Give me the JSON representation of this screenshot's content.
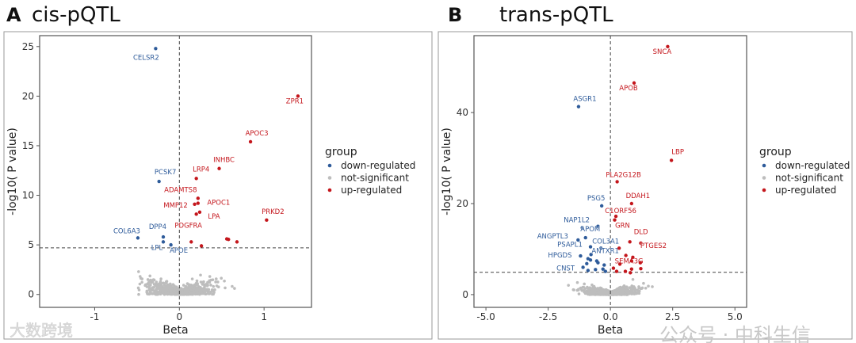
{
  "chart_data": [
    {
      "type": "scatter",
      "panel": "A",
      "title": "cis-pQTL",
      "xlabel": "Beta",
      "ylabel": "-log10( P value)",
      "xlim": [
        -1.65,
        1.56
      ],
      "ylim": [
        -1.3,
        26.1
      ],
      "xticks": [
        -1,
        0,
        1
      ],
      "xtick_labels": [
        "-1",
        "0",
        "1"
      ],
      "yticks": [
        0,
        5,
        10,
        15,
        20,
        25
      ],
      "threshold_y": 4.7,
      "threshold_x": 0,
      "legend": {
        "title": "group",
        "placement": "right",
        "entries": [
          "down-regulated",
          "not-significant",
          "up-regulated"
        ]
      },
      "points": [
        {
          "label": "CELSR2",
          "x": -0.28,
          "y": 24.8,
          "group": "down"
        },
        {
          "label": "ZPR1",
          "x": 1.4,
          "y": 20.0,
          "group": "up"
        },
        {
          "label": "APOC3",
          "x": 0.84,
          "y": 15.4,
          "group": "up"
        },
        {
          "label": "INHBC",
          "x": 0.47,
          "y": 12.7,
          "group": "up"
        },
        {
          "label": "LRP4",
          "x": 0.2,
          "y": 11.7,
          "group": "up"
        },
        {
          "label": "PCSK7",
          "x": -0.24,
          "y": 11.4,
          "group": "down"
        },
        {
          "label": "ADAMTS8",
          "x": 0.22,
          "y": 9.7,
          "group": "up"
        },
        {
          "label": "APOC1",
          "x": 0.22,
          "y": 9.2,
          "group": "up"
        },
        {
          "label": "MMP12",
          "x": 0.18,
          "y": 9.1,
          "group": "up"
        },
        {
          "label": "LPA",
          "x": 0.24,
          "y": 8.3,
          "group": "up"
        },
        {
          "label": "PDGFRA",
          "x": 0.2,
          "y": 8.1,
          "group": "up"
        },
        {
          "label": "PRKD2",
          "x": 1.03,
          "y": 7.5,
          "group": "up"
        },
        {
          "label": "COL6A3",
          "x": -0.49,
          "y": 5.7,
          "group": "down"
        },
        {
          "label": "DPP4",
          "x": -0.19,
          "y": 5.8,
          "group": "down"
        },
        {
          "label": "LPL",
          "x": -0.19,
          "y": 5.3,
          "group": "down"
        },
        {
          "label": "APOE",
          "x": -0.1,
          "y": 5.0,
          "group": "down"
        },
        {
          "label": "",
          "x": 0.14,
          "y": 5.3,
          "group": "up"
        },
        {
          "label": "",
          "x": 0.26,
          "y": 4.9,
          "group": "up"
        },
        {
          "label": "",
          "x": 0.56,
          "y": 5.6,
          "group": "up"
        },
        {
          "label": "",
          "x": 0.58,
          "y": 5.55,
          "group": "up"
        },
        {
          "label": "",
          "x": 0.68,
          "y": 5.3,
          "group": "up"
        }
      ]
    },
    {
      "type": "scatter",
      "panel": "B",
      "title": "trans-pQTL",
      "xlabel": "Beta",
      "ylabel": "-log10( P value)",
      "xlim": [
        -5.48,
        5.47
      ],
      "ylim": [
        -2.8,
        56.9
      ],
      "xticks": [
        -5,
        -2.5,
        0,
        2.5,
        5
      ],
      "xtick_labels": [
        "-5.0",
        "-2.5",
        "0.0",
        "2.5",
        "5.0"
      ],
      "yticks": [
        0,
        20,
        40
      ],
      "threshold_y": 4.9,
      "threshold_x": 0,
      "legend": {
        "title": "group",
        "placement": "right",
        "entries": [
          "down-regulated",
          "not-significant",
          "up-regulated"
        ]
      },
      "points": [
        {
          "label": "SNCA",
          "x": 2.3,
          "y": 54.5,
          "group": "up"
        },
        {
          "label": "APOB",
          "x": 0.95,
          "y": 46.5,
          "group": "up"
        },
        {
          "label": "ASGR1",
          "x": -1.28,
          "y": 41.3,
          "group": "down"
        },
        {
          "label": "LBP",
          "x": 2.45,
          "y": 29.5,
          "group": "up"
        },
        {
          "label": "PLA2G12B",
          "x": 0.27,
          "y": 24.8,
          "group": "up"
        },
        {
          "label": "DDAH1",
          "x": 0.85,
          "y": 20.0,
          "group": "up"
        },
        {
          "label": "PSG5",
          "x": -0.35,
          "y": 19.5,
          "group": "down"
        },
        {
          "label": "C1ORF56",
          "x": 0.22,
          "y": 17.2,
          "group": "up"
        },
        {
          "label": "GRN",
          "x": 0.17,
          "y": 16.4,
          "group": "up"
        },
        {
          "label": "NAP1L2",
          "x": -1.13,
          "y": 14.7,
          "group": "down"
        },
        {
          "label": "",
          "x": -0.5,
          "y": 15.0,
          "group": "down"
        },
        {
          "label": "ANGPTL3",
          "x": -1.3,
          "y": 12.0,
          "group": "down"
        },
        {
          "label": "APOM",
          "x": -1.0,
          "y": 12.5,
          "group": "down"
        },
        {
          "label": "DLD",
          "x": 0.78,
          "y": 11.6,
          "group": "up"
        },
        {
          "label": "PTGES2",
          "x": 1.22,
          "y": 11.3,
          "group": "up"
        },
        {
          "label": "COL3A1",
          "x": -0.38,
          "y": 10.2,
          "group": "down"
        },
        {
          "label": "PSAPL1",
          "x": -0.8,
          "y": 10.5,
          "group": "down"
        },
        {
          "label": "SEMA3G",
          "x": 0.62,
          "y": 8.6,
          "group": "up"
        },
        {
          "label": "ANTXR1",
          "x": -0.78,
          "y": 8.8,
          "group": "down"
        },
        {
          "label": "HPGDS",
          "x": -1.2,
          "y": 8.5,
          "group": "down"
        },
        {
          "label": "CNST",
          "x": -1.1,
          "y": 6.0,
          "group": "down"
        },
        {
          "label": "",
          "x": -0.9,
          "y": 7.9,
          "group": "down"
        },
        {
          "label": "",
          "x": -0.8,
          "y": 7.6,
          "group": "down"
        },
        {
          "label": "",
          "x": -0.55,
          "y": 7.4,
          "group": "down"
        },
        {
          "label": "",
          "x": -0.5,
          "y": 7.0,
          "group": "down"
        },
        {
          "label": "",
          "x": -0.25,
          "y": 6.5,
          "group": "down"
        },
        {
          "label": "",
          "x": -0.3,
          "y": 5.6,
          "group": "down"
        },
        {
          "label": "",
          "x": -0.6,
          "y": 5.5,
          "group": "down"
        },
        {
          "label": "",
          "x": -0.9,
          "y": 5.3,
          "group": "down"
        },
        {
          "label": "",
          "x": -0.95,
          "y": 6.8,
          "group": "down"
        },
        {
          "label": "",
          "x": -0.2,
          "y": 5.1,
          "group": "down"
        },
        {
          "label": "",
          "x": 0.9,
          "y": 8.2,
          "group": "up"
        },
        {
          "label": "",
          "x": 0.85,
          "y": 7.4,
          "group": "up"
        },
        {
          "label": "",
          "x": 1.2,
          "y": 7.0,
          "group": "up"
        },
        {
          "label": "",
          "x": 1.22,
          "y": 5.7,
          "group": "up"
        },
        {
          "label": "",
          "x": 0.85,
          "y": 5.6,
          "group": "up"
        },
        {
          "label": "",
          "x": 0.38,
          "y": 6.7,
          "group": "up"
        },
        {
          "label": "",
          "x": 0.12,
          "y": 5.8,
          "group": "up"
        },
        {
          "label": "",
          "x": 0.25,
          "y": 5.1,
          "group": "up"
        },
        {
          "label": "",
          "x": 0.6,
          "y": 5.1,
          "group": "up"
        },
        {
          "label": "",
          "x": 0.8,
          "y": 4.8,
          "group": "up"
        },
        {
          "label": "",
          "x": 0.35,
          "y": 10.2,
          "group": "up"
        }
      ]
    }
  ],
  "colors": {
    "down": "#2e5b9a",
    "up": "#c4161c",
    "ns": "#bdbdbd"
  },
  "watermarks": [
    "大数跨境",
    "公众号 · 中科生信"
  ]
}
